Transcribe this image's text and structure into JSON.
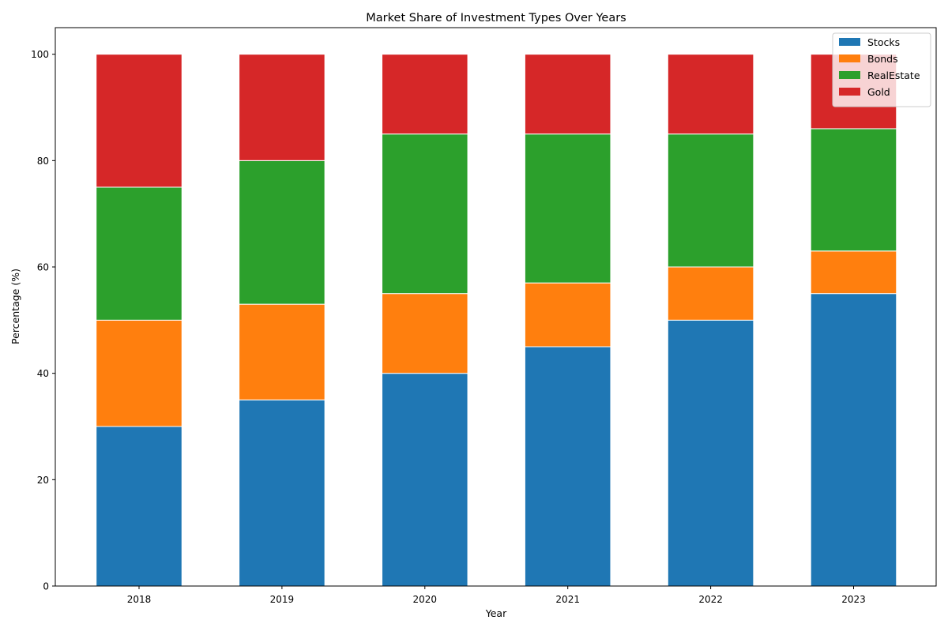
{
  "chart_data": {
    "type": "bar",
    "stacked": true,
    "title": "Market Share of Investment Types Over Years",
    "xlabel": "Year",
    "ylabel": "Percentage (%)",
    "categories": [
      "2018",
      "2019",
      "2020",
      "2021",
      "2022",
      "2023"
    ],
    "ylim": [
      0,
      105
    ],
    "yticks": [
      0,
      20,
      40,
      60,
      80,
      100
    ],
    "grid": false,
    "legend_position": "top-right",
    "series": [
      {
        "name": "Stocks",
        "color": "#1f77b4",
        "values": [
          30,
          35,
          40,
          45,
          50,
          55
        ]
      },
      {
        "name": "Bonds",
        "color": "#ff7f0e",
        "values": [
          20,
          18,
          15,
          12,
          10,
          8
        ]
      },
      {
        "name": "RealEstate",
        "color": "#2ca02c",
        "values": [
          25,
          27,
          30,
          28,
          25,
          23
        ]
      },
      {
        "name": "Gold",
        "color": "#d62728",
        "values": [
          25,
          20,
          15,
          15,
          15,
          14
        ]
      }
    ]
  }
}
